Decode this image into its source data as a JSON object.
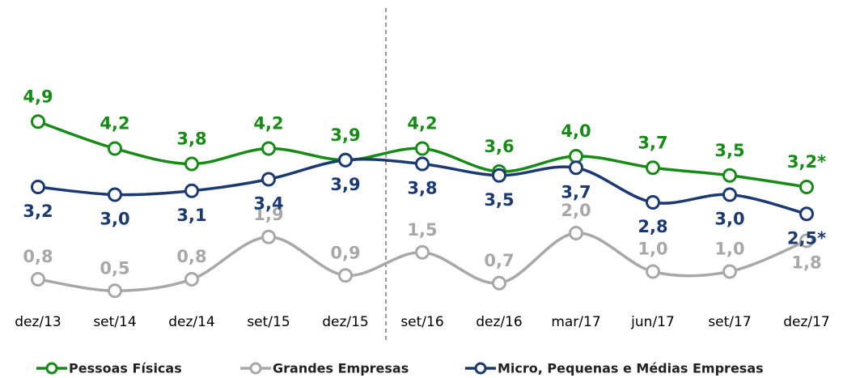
{
  "chart_data": {
    "type": "line",
    "categories": [
      "dez/13",
      "set/14",
      "dez/14",
      "set/15",
      "dez/15",
      "set/16",
      "dez/16",
      "mar/17",
      "jun/17",
      "set/17",
      "dez/17"
    ],
    "series": [
      {
        "name": "Pessoas Físicas",
        "color": "#178a17",
        "values": [
          4.9,
          4.2,
          3.8,
          4.2,
          3.9,
          4.2,
          3.6,
          4.0,
          3.7,
          3.5,
          3.2
        ],
        "value_labels": [
          "4,9",
          "4,2",
          "3,8",
          "4,2",
          "3,9",
          "4,2",
          "3,6",
          "4,0",
          "3,7",
          "3,5",
          "3,2*"
        ]
      },
      {
        "name": "Grandes Empresas",
        "color": "#a8a8a8",
        "values": [
          0.8,
          0.5,
          0.8,
          1.9,
          0.9,
          1.5,
          0.7,
          2.0,
          1.0,
          1.0,
          1.8
        ],
        "value_labels": [
          "0,8",
          "0,5",
          "0,8",
          "1,9",
          "0,9",
          "1,5",
          "0,7",
          "2,0",
          "1,0",
          "1,0",
          "1,8"
        ]
      },
      {
        "name": "Micro, Pequenas e Médias Empresas",
        "color": "#1c3a72",
        "values": [
          3.2,
          3.0,
          3.1,
          3.4,
          3.9,
          3.8,
          3.5,
          3.7,
          2.8,
          3.0,
          2.5
        ],
        "value_labels": [
          "3,2",
          "3,0",
          "3,1",
          "3,4",
          "3,9",
          "3,8",
          "3,5",
          "3,7",
          "2,8",
          "3,0",
          "2,5*"
        ]
      }
    ],
    "ylim": [
      0,
      8
    ],
    "legend": "bottom"
  }
}
